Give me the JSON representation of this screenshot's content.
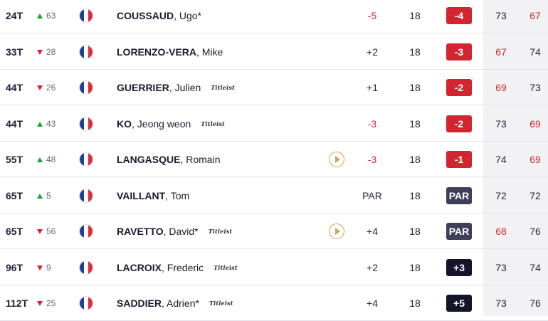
{
  "colors": {
    "under_par": "#d32530",
    "even_badge": "#3f3f5a",
    "over_par_badge": "#14142a",
    "move_up": "#19a33b",
    "move_down": "#d32530",
    "video_icon": "#c9a44c"
  },
  "rows": [
    {
      "pos": "24T",
      "move_dir": "up",
      "move": "63",
      "last": "COUSSAUD",
      "first": ", Ugo*",
      "sponsor": "",
      "video": false,
      "to_par": "-5",
      "to_par_red": true,
      "thru": "18",
      "score": "-4",
      "score_style": "red",
      "r1": "73",
      "r1_red": false,
      "r2": "67",
      "r2_red": true
    },
    {
      "pos": "33T",
      "move_dir": "down",
      "move": "28",
      "last": "LORENZO-VERA",
      "first": ", Mike",
      "sponsor": "",
      "video": false,
      "to_par": "+2",
      "to_par_red": false,
      "thru": "18",
      "score": "-3",
      "score_style": "red",
      "r1": "67",
      "r1_red": true,
      "r2": "74",
      "r2_red": false
    },
    {
      "pos": "44T",
      "move_dir": "down",
      "move": "26",
      "last": "GUERRIER",
      "first": ", Julien",
      "sponsor": "Titleist",
      "video": false,
      "to_par": "+1",
      "to_par_red": false,
      "thru": "18",
      "score": "-2",
      "score_style": "red",
      "r1": "69",
      "r1_red": true,
      "r2": "73",
      "r2_red": false
    },
    {
      "pos": "44T",
      "move_dir": "up",
      "move": "43",
      "last": "KO",
      "first": ", Jeong weon",
      "sponsor": "Titleist",
      "video": false,
      "to_par": "-3",
      "to_par_red": true,
      "thru": "18",
      "score": "-2",
      "score_style": "red",
      "r1": "73",
      "r1_red": false,
      "r2": "69",
      "r2_red": true
    },
    {
      "pos": "55T",
      "move_dir": "up",
      "move": "48",
      "last": "LANGASQUE",
      "first": ", Romain",
      "sponsor": "",
      "video": true,
      "to_par": "-3",
      "to_par_red": true,
      "thru": "18",
      "score": "-1",
      "score_style": "red",
      "r1": "74",
      "r1_red": false,
      "r2": "69",
      "r2_red": true
    },
    {
      "pos": "65T",
      "move_dir": "up",
      "move": "5",
      "last": "VAILLANT",
      "first": ", Tom",
      "sponsor": "",
      "video": false,
      "to_par": "PAR",
      "to_par_red": false,
      "thru": "18",
      "score": "PAR",
      "score_style": "even",
      "r1": "72",
      "r1_red": false,
      "r2": "72",
      "r2_red": false
    },
    {
      "pos": "65T",
      "move_dir": "down",
      "move": "56",
      "last": "RAVETTO",
      "first": ", David*",
      "sponsor": "Titleist",
      "video": true,
      "to_par": "+4",
      "to_par_red": false,
      "thru": "18",
      "score": "PAR",
      "score_style": "even",
      "r1": "68",
      "r1_red": true,
      "r2": "76",
      "r2_red": false
    },
    {
      "pos": "96T",
      "move_dir": "down",
      "move": "9",
      "last": "LACROIX",
      "first": ", Frederic",
      "sponsor": "Titleist",
      "video": false,
      "to_par": "+2",
      "to_par_red": false,
      "thru": "18",
      "score": "+3",
      "score_style": "over",
      "r1": "73",
      "r1_red": false,
      "r2": "74",
      "r2_red": false
    },
    {
      "pos": "112T",
      "move_dir": "down",
      "move": "25",
      "last": "SADDIER",
      "first": ", Adrien*",
      "sponsor": "Titleist",
      "video": false,
      "to_par": "+4",
      "to_par_red": false,
      "thru": "18",
      "score": "+5",
      "score_style": "over",
      "r1": "73",
      "r1_red": false,
      "r2": "76",
      "r2_red": false
    }
  ]
}
